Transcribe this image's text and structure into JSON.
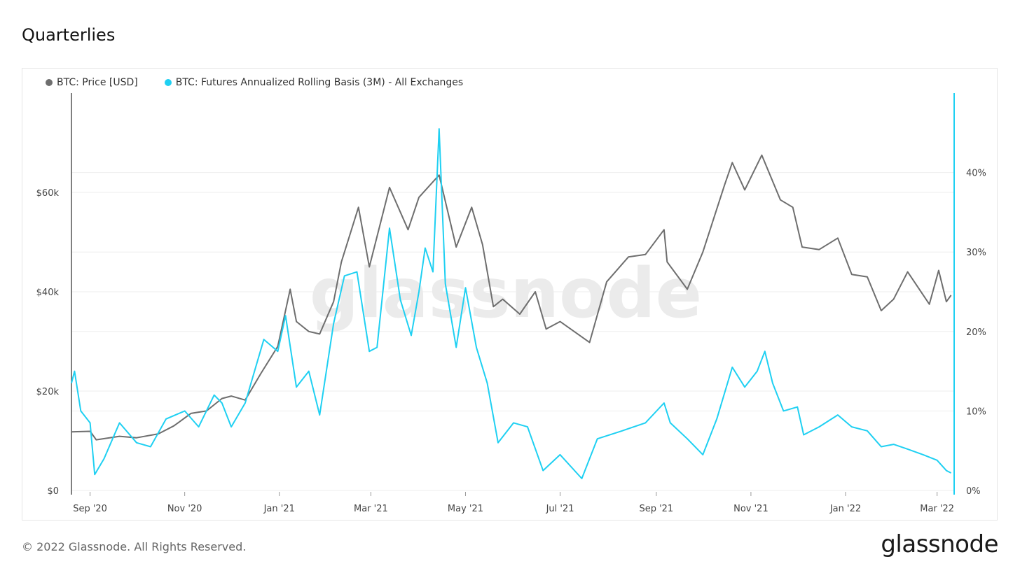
{
  "title": "Quarterlies",
  "legend": {
    "price": "BTC: Price [USD]",
    "basis": "BTC: Futures Annualized Rolling Basis (3M) - All Exchanges"
  },
  "watermark": "glassnode",
  "footer": {
    "copyright": "© 2022 Glassnode. All Rights Reserved.",
    "logo": "glassnode"
  },
  "colors": {
    "price": "#6e6e6e",
    "basis": "#1fd0f2",
    "grid": "#eeeeee",
    "axis": "#444444"
  },
  "chart_data": {
    "type": "line",
    "x_ticks": [
      "Sep '20",
      "Nov '20",
      "Jan '21",
      "Mar '21",
      "May '21",
      "Jul '21",
      "Sep '21",
      "Nov '21",
      "Jan '22",
      "Mar '22"
    ],
    "x_tick_dates": [
      "2020-09-01",
      "2020-11-01",
      "2021-01-01",
      "2021-03-01",
      "2021-05-01",
      "2021-07-01",
      "2021-09-01",
      "2021-11-01",
      "2022-01-01",
      "2022-03-01"
    ],
    "xlim": [
      "2020-08-20",
      "2022-03-12"
    ],
    "left_axis": {
      "ticks": [
        "$0",
        "$20k",
        "$40k",
        "$60k"
      ],
      "values": [
        0,
        20000,
        40000,
        60000
      ],
      "ylim": [
        0,
        80000
      ]
    },
    "right_axis": {
      "ticks": [
        "0%",
        "10%",
        "20%",
        "30%",
        "40%"
      ],
      "values": [
        0,
        10,
        20,
        30,
        40
      ],
      "ylim": [
        0,
        50
      ]
    },
    "grid": true,
    "legend_position": "top-left",
    "series": [
      {
        "name": "BTC: Price [USD]",
        "axis": "left",
        "points": [
          [
            "2020-08-20",
            11800
          ],
          [
            "2020-09-01",
            11900
          ],
          [
            "2020-09-05",
            10200
          ],
          [
            "2020-09-20",
            10900
          ],
          [
            "2020-10-01",
            10600
          ],
          [
            "2020-10-15",
            11400
          ],
          [
            "2020-10-25",
            13000
          ],
          [
            "2020-11-05",
            15500
          ],
          [
            "2020-11-15",
            16000
          ],
          [
            "2020-11-25",
            18500
          ],
          [
            "2020-12-01",
            19000
          ],
          [
            "2020-12-10",
            18200
          ],
          [
            "2020-12-20",
            23500
          ],
          [
            "2020-12-31",
            29000
          ],
          [
            "2021-01-08",
            40500
          ],
          [
            "2021-01-12",
            34000
          ],
          [
            "2021-01-20",
            32000
          ],
          [
            "2021-01-27",
            31500
          ],
          [
            "2021-02-05",
            38000
          ],
          [
            "2021-02-10",
            46000
          ],
          [
            "2021-02-21",
            57000
          ],
          [
            "2021-02-28",
            45000
          ],
          [
            "2021-03-13",
            61000
          ],
          [
            "2021-03-25",
            52500
          ],
          [
            "2021-04-01",
            59000
          ],
          [
            "2021-04-14",
            63500
          ],
          [
            "2021-04-25",
            49000
          ],
          [
            "2021-05-05",
            57000
          ],
          [
            "2021-05-12",
            49500
          ],
          [
            "2021-05-19",
            37000
          ],
          [
            "2021-05-25",
            38500
          ],
          [
            "2021-06-05",
            35500
          ],
          [
            "2021-06-15",
            40000
          ],
          [
            "2021-06-22",
            32500
          ],
          [
            "2021-07-01",
            34000
          ],
          [
            "2021-07-20",
            29800
          ],
          [
            "2021-07-31",
            42000
          ],
          [
            "2021-08-14",
            47000
          ],
          [
            "2021-08-25",
            47500
          ],
          [
            "2021-09-06",
            52500
          ],
          [
            "2021-09-08",
            46000
          ],
          [
            "2021-09-21",
            40500
          ],
          [
            "2021-10-01",
            48000
          ],
          [
            "2021-10-15",
            61500
          ],
          [
            "2021-10-20",
            66000
          ],
          [
            "2021-10-28",
            60500
          ],
          [
            "2021-11-08",
            67500
          ],
          [
            "2021-11-20",
            58500
          ],
          [
            "2021-11-28",
            57000
          ],
          [
            "2021-12-04",
            49000
          ],
          [
            "2021-12-15",
            48500
          ],
          [
            "2021-12-27",
            50800
          ],
          [
            "2022-01-05",
            43500
          ],
          [
            "2022-01-15",
            43000
          ],
          [
            "2022-01-24",
            36200
          ],
          [
            "2022-02-01",
            38500
          ],
          [
            "2022-02-10",
            44000
          ],
          [
            "2022-02-24",
            37500
          ],
          [
            "2022-03-02",
            44300
          ],
          [
            "2022-03-07",
            38000
          ],
          [
            "2022-03-10",
            39300
          ]
        ]
      },
      {
        "name": "BTC: Futures Annualized Rolling Basis (3M) - All Exchanges",
        "axis": "right",
        "points": [
          [
            "2020-08-20",
            13.5
          ],
          [
            "2020-08-22",
            15
          ],
          [
            "2020-08-26",
            10
          ],
          [
            "2020-09-01",
            8.5
          ],
          [
            "2020-09-04",
            2
          ],
          [
            "2020-09-10",
            4
          ],
          [
            "2020-09-20",
            8.5
          ],
          [
            "2020-10-01",
            6
          ],
          [
            "2020-10-10",
            5.5
          ],
          [
            "2020-10-20",
            9
          ],
          [
            "2020-11-01",
            10
          ],
          [
            "2020-11-10",
            8
          ],
          [
            "2020-11-20",
            12
          ],
          [
            "2020-11-25",
            11
          ],
          [
            "2020-12-01",
            8
          ],
          [
            "2020-12-10",
            11
          ],
          [
            "2020-12-22",
            19
          ],
          [
            "2020-12-31",
            17.5
          ],
          [
            "2021-01-05",
            22
          ],
          [
            "2021-01-12",
            13
          ],
          [
            "2021-01-20",
            15
          ],
          [
            "2021-01-27",
            9.5
          ],
          [
            "2021-02-05",
            21
          ],
          [
            "2021-02-12",
            27
          ],
          [
            "2021-02-20",
            27.5
          ],
          [
            "2021-02-28",
            17.5
          ],
          [
            "2021-03-05",
            18
          ],
          [
            "2021-03-13",
            33
          ],
          [
            "2021-03-20",
            24
          ],
          [
            "2021-03-27",
            19.5
          ],
          [
            "2021-04-01",
            25
          ],
          [
            "2021-04-05",
            30.5
          ],
          [
            "2021-04-10",
            27.5
          ],
          [
            "2021-04-14",
            45.5
          ],
          [
            "2021-04-18",
            26
          ],
          [
            "2021-04-25",
            18
          ],
          [
            "2021-05-01",
            25.5
          ],
          [
            "2021-05-08",
            18
          ],
          [
            "2021-05-15",
            13.5
          ],
          [
            "2021-05-22",
            6
          ],
          [
            "2021-06-01",
            8.5
          ],
          [
            "2021-06-10",
            8
          ],
          [
            "2021-06-20",
            2.5
          ],
          [
            "2021-07-01",
            4.5
          ],
          [
            "2021-07-15",
            1.5
          ],
          [
            "2021-07-25",
            6.5
          ],
          [
            "2021-08-10",
            7.5
          ],
          [
            "2021-08-25",
            8.5
          ],
          [
            "2021-09-06",
            11
          ],
          [
            "2021-09-10",
            8.5
          ],
          [
            "2021-09-21",
            6.5
          ],
          [
            "2021-10-01",
            4.5
          ],
          [
            "2021-10-10",
            9
          ],
          [
            "2021-10-20",
            15.5
          ],
          [
            "2021-10-28",
            13
          ],
          [
            "2021-11-05",
            15
          ],
          [
            "2021-11-10",
            17.5
          ],
          [
            "2021-11-15",
            13.5
          ],
          [
            "2021-11-22",
            10
          ],
          [
            "2021-12-01",
            10.5
          ],
          [
            "2021-12-05",
            7
          ],
          [
            "2021-12-15",
            8
          ],
          [
            "2021-12-27",
            9.5
          ],
          [
            "2022-01-05",
            8
          ],
          [
            "2022-01-15",
            7.5
          ],
          [
            "2022-01-24",
            5.5
          ],
          [
            "2022-02-01",
            5.8
          ],
          [
            "2022-02-10",
            5.2
          ],
          [
            "2022-02-20",
            4.5
          ],
          [
            "2022-03-01",
            3.8
          ],
          [
            "2022-03-07",
            2.5
          ],
          [
            "2022-03-10",
            2.2
          ]
        ]
      }
    ]
  }
}
